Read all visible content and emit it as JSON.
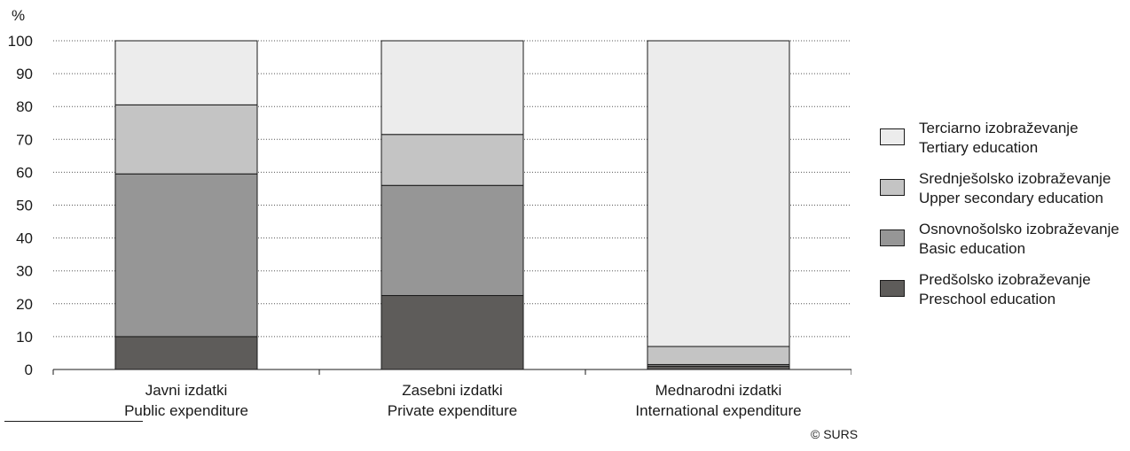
{
  "chart_data": {
    "type": "bar",
    "stacked": true,
    "ylabel": "%",
    "ylim": [
      0,
      100
    ],
    "yticks": [
      0,
      10,
      20,
      30,
      40,
      50,
      60,
      70,
      80,
      90,
      100
    ],
    "grid": "dotted horizontal",
    "legend_position": "right",
    "categories": [
      [
        "Javni izdatki",
        "Public expenditure"
      ],
      [
        "Zasebni izdatki",
        "Private expenditure"
      ],
      [
        "Mednarodni izdatki",
        "International expenditure"
      ]
    ],
    "series": [
      {
        "name": [
          "Predšolsko izobraževanje",
          "Preschool education"
        ],
        "color": "#5e5c5a",
        "values": [
          10,
          22.5,
          1
        ]
      },
      {
        "name": [
          "Osnovnošolsko izobraževanje",
          "Basic education"
        ],
        "color": "#969696",
        "values": [
          49.5,
          33.5,
          0.5
        ]
      },
      {
        "name": [
          "Srednješolsko izobraževanje",
          "Upper secondary education"
        ],
        "color": "#c4c4c4",
        "values": [
          21,
          15.5,
          5.5
        ]
      },
      {
        "name": [
          "Terciarno izobraževanje",
          "Tertiary education"
        ],
        "color": "#ececec",
        "values": [
          19.5,
          28.5,
          93
        ]
      }
    ]
  },
  "credit": "© SURS"
}
